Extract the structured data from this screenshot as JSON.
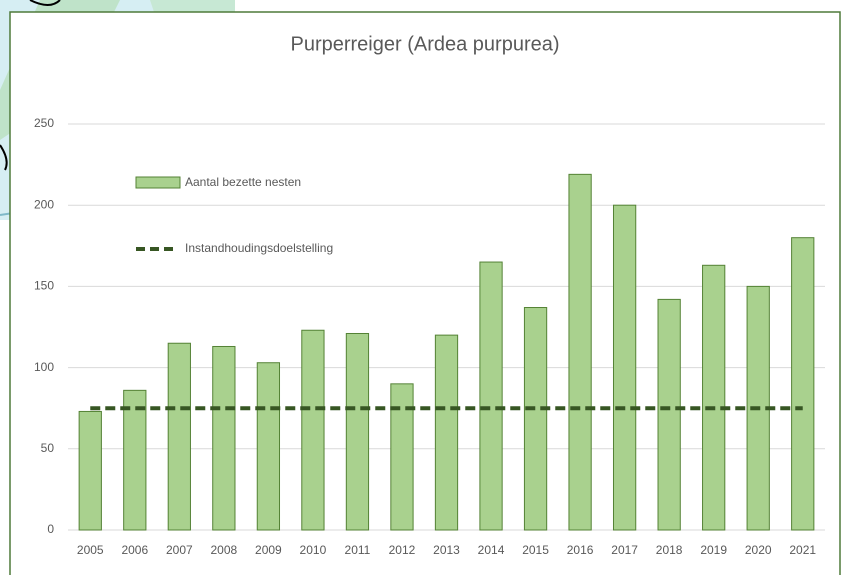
{
  "chart_data": {
    "type": "bar",
    "title": "Purperreiger (Ardea purpurea)",
    "categories": [
      "2005",
      "2006",
      "2007",
      "2008",
      "2009",
      "2010",
      "2011",
      "2012",
      "2013",
      "2014",
      "2015",
      "2016",
      "2017",
      "2018",
      "2019",
      "2020",
      "2021"
    ],
    "series": [
      {
        "name": "Aantal bezette nesten",
        "type": "bar",
        "color": "#a9d18e",
        "values": [
          73,
          86,
          115,
          113,
          103,
          123,
          121,
          90,
          120,
          165,
          137,
          219,
          200,
          142,
          163,
          150,
          180
        ]
      },
      {
        "name": "Instandhoudingsdoelstelling",
        "type": "line",
        "color": "#375623",
        "values": [
          75,
          75,
          75,
          75,
          75,
          75,
          75,
          75,
          75,
          75,
          75,
          75,
          75,
          75,
          75,
          75,
          75
        ]
      }
    ],
    "ylim": [
      0,
      250
    ],
    "yticks": [
      0,
      50,
      100,
      150,
      200,
      250
    ],
    "grid": true
  }
}
